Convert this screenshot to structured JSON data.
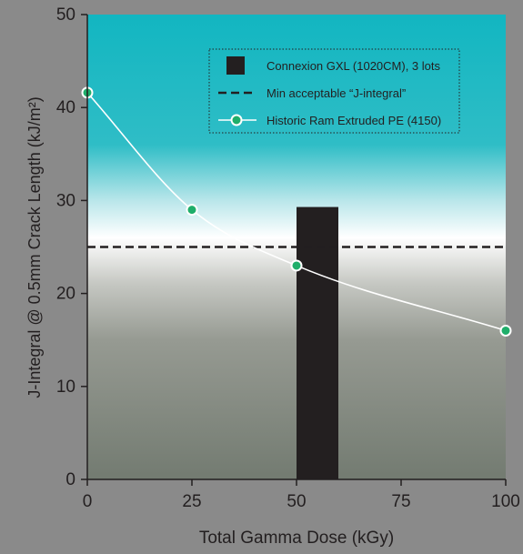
{
  "chart_data": {
    "type": "line",
    "title": "",
    "xlabel": "Total Gamma Dose (kGy)",
    "ylabel": "J-Integral @ 0.5mm Crack Length (kJ/m²)",
    "xlim": [
      0,
      100
    ],
    "ylim": [
      0,
      50
    ],
    "x_ticks": [
      0,
      25,
      50,
      75,
      100
    ],
    "y_ticks": [
      0,
      10,
      20,
      30,
      40,
      50
    ],
    "grid": false,
    "legend_position": "top-right",
    "bar_series": {
      "name": "Connexion GXL (1020CM), 3 lots",
      "x_start": 50,
      "x_end": 60,
      "value": 29.3,
      "color": "#231f20"
    },
    "reference_line": {
      "name": "Min acceptable “J-integral”",
      "value": 25,
      "color": "#231f20"
    },
    "line_series": {
      "name": "Historic Ram Extruded PE (4150)",
      "x": [
        0,
        25,
        50,
        100
      ],
      "y": [
        41.6,
        29,
        23,
        16
      ],
      "line_color": "#ffffff",
      "marker_color": "#1fae6a"
    },
    "background_colors": {
      "top": "#12b6c1",
      "middle": "#ffffff",
      "bottom": "#747c72",
      "page": "#8a8a8a"
    }
  }
}
